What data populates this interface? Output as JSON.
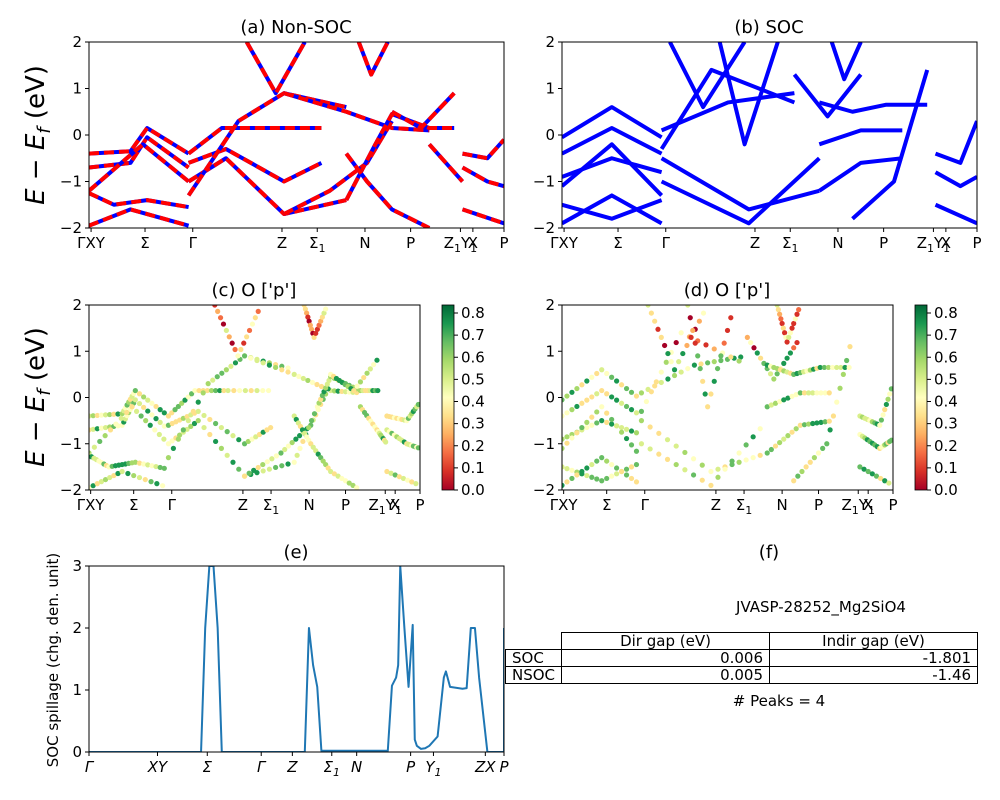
{
  "chart_data": [
    {
      "panel": "a",
      "type": "line",
      "title": "(a) Non-SOC",
      "ylabel": "E − E_f (eV)",
      "ylim": [
        -2,
        2
      ],
      "yticks": [
        "2",
        "1",
        "0",
        "−1",
        "−2"
      ],
      "kpath_labels": [
        "ΓXY",
        "Σ",
        "Γ",
        "Z",
        "Σ1",
        "N",
        "P",
        "Z1Y1",
        "X",
        "P"
      ],
      "line_color": "#0000ff",
      "overlay_color": "#ff0000",
      "series": [
        {
          "x": [
            0,
            0.1,
            0.14,
            0.24
          ],
          "y": [
            -0.4,
            -0.35,
            0.15,
            -0.4
          ]
        },
        {
          "x": [
            0,
            0.1,
            0.14,
            0.24
          ],
          "y": [
            -0.7,
            -0.6,
            -0.05,
            -0.7
          ]
        },
        {
          "x": [
            0,
            0.13,
            0.24
          ],
          "y": [
            -1.2,
            -0.2,
            -1.0
          ]
        },
        {
          "x": [
            0,
            0.06,
            0.14,
            0.24
          ],
          "y": [
            -1.25,
            -1.5,
            -1.4,
            -1.55
          ]
        },
        {
          "x": [
            0,
            0.1,
            0.24
          ],
          "y": [
            -1.95,
            -1.6,
            -1.95
          ]
        },
        {
          "x": [
            0.24,
            0.32,
            0.42,
            0.56
          ],
          "y": [
            -0.4,
            0.15,
            0.15,
            0.15
          ]
        },
        {
          "x": [
            0.24,
            0.33,
            0.47,
            0.56
          ],
          "y": [
            -0.6,
            -0.3,
            -1.0,
            -0.6
          ]
        },
        {
          "x": [
            0.24,
            0.33,
            0.47,
            0.62
          ],
          "y": [
            -1.0,
            -0.5,
            -1.7,
            -1.4
          ]
        },
        {
          "x": [
            0.24,
            0.36,
            0.47,
            0.62
          ],
          "y": [
            -1.3,
            0.3,
            0.9,
            0.6
          ]
        },
        {
          "x": [
            0.38,
            0.45,
            0.52
          ],
          "y": [
            2.0,
            0.9,
            2.0
          ]
        },
        {
          "x": [
            0.47,
            0.62,
            0.73,
            0.82
          ],
          "y": [
            0.9,
            0.5,
            0.15,
            0.1
          ]
        },
        {
          "x": [
            0.47,
            0.58,
            0.67,
            0.73
          ],
          "y": [
            -1.7,
            -1.2,
            -0.6,
            0.3
          ]
        },
        {
          "x": [
            0.62,
            0.69,
            0.73,
            0.82,
            0.88
          ],
          "y": [
            -1.4,
            -0.2,
            0.45,
            0.15,
            0.15
          ]
        },
        {
          "x": [
            0.62,
            0.67,
            0.73,
            0.82
          ],
          "y": [
            -0.4,
            -1.0,
            -1.6,
            -2.0
          ]
        },
        {
          "x": [
            0.65,
            0.68,
            0.72
          ],
          "y": [
            2.0,
            1.3,
            2.0
          ]
        },
        {
          "x": [
            0.73,
            0.8,
            0.88
          ],
          "y": [
            0.5,
            0.15,
            0.9
          ]
        },
        {
          "x": [
            0.82,
            0.87,
            0.9
          ],
          "y": [
            -0.2,
            -0.7,
            -1.0
          ]
        },
        {
          "x": [
            0.9,
            0.96,
            1.0
          ],
          "y": [
            -0.4,
            -0.5,
            -0.1
          ]
        },
        {
          "x": [
            0.9,
            0.96,
            1.0
          ],
          "y": [
            -0.7,
            -1.0,
            -1.1
          ]
        },
        {
          "x": [
            0.9,
            1.0
          ],
          "y": [
            -1.6,
            -1.9
          ]
        }
      ]
    },
    {
      "panel": "b",
      "type": "line",
      "title": "(b) SOC",
      "ylim": [
        -2,
        2
      ],
      "yticks": [
        "2",
        "1",
        "0",
        "−1",
        "−2"
      ],
      "kpath_labels": [
        "ΓXY",
        "Σ",
        "Γ",
        "Z",
        "Σ1",
        "N",
        "P",
        "Z1Y1",
        "X",
        "P"
      ],
      "line_color": "#0000ff",
      "series": [
        {
          "x": [
            0,
            0.12,
            0.24
          ],
          "y": [
            -0.05,
            0.6,
            -0.05
          ]
        },
        {
          "x": [
            0,
            0.12,
            0.24
          ],
          "y": [
            -0.4,
            0.15,
            -0.4
          ]
        },
        {
          "x": [
            0,
            0.12,
            0.24
          ],
          "y": [
            -0.9,
            -0.5,
            -0.8
          ]
        },
        {
          "x": [
            0,
            0.12,
            0.24
          ],
          "y": [
            -1.1,
            -0.2,
            -1.3
          ]
        },
        {
          "x": [
            0,
            0.12,
            0.24
          ],
          "y": [
            -1.5,
            -1.8,
            -1.4
          ]
        },
        {
          "x": [
            0,
            0.12,
            0.24
          ],
          "y": [
            -1.9,
            -1.3,
            -1.9
          ]
        },
        {
          "x": [
            0.24,
            0.4,
            0.56
          ],
          "y": [
            0.1,
            0.7,
            0.9
          ]
        },
        {
          "x": [
            0.24,
            0.36,
            0.56
          ],
          "y": [
            -0.3,
            1.4,
            0.7
          ]
        },
        {
          "x": [
            0.24,
            0.45,
            0.62
          ],
          "y": [
            -0.5,
            -1.6,
            -1.2
          ]
        },
        {
          "x": [
            0.24,
            0.45,
            0.62
          ],
          "y": [
            -1.0,
            -1.9,
            -0.5
          ]
        },
        {
          "x": [
            0.26,
            0.34,
            0.44
          ],
          "y": [
            2.0,
            0.6,
            2.0
          ]
        },
        {
          "x": [
            0.38,
            0.44,
            0.52
          ],
          "y": [
            2.0,
            -0.2,
            2.0
          ]
        },
        {
          "x": [
            0.56,
            0.64,
            0.72
          ],
          "y": [
            1.3,
            0.4,
            1.3
          ]
        },
        {
          "x": [
            0.62,
            0.7,
            0.78,
            0.88
          ],
          "y": [
            0.7,
            0.5,
            0.65,
            0.65
          ]
        },
        {
          "x": [
            0.62,
            0.72,
            0.82
          ],
          "y": [
            -0.2,
            0.1,
            0.1
          ]
        },
        {
          "x": [
            0.62,
            0.72,
            0.82
          ],
          "y": [
            -1.2,
            -0.6,
            -0.5
          ]
        },
        {
          "x": [
            0.65,
            0.68,
            0.72
          ],
          "y": [
            2.0,
            1.2,
            2.0
          ]
        },
        {
          "x": [
            0.7,
            0.8,
            0.88
          ],
          "y": [
            -1.8,
            -1.0,
            1.4
          ]
        },
        {
          "x": [
            0.9,
            0.96,
            1.0
          ],
          "y": [
            -0.4,
            -0.6,
            0.3
          ]
        },
        {
          "x": [
            0.9,
            0.96,
            1.0
          ],
          "y": [
            -0.8,
            -1.1,
            -0.9
          ]
        },
        {
          "x": [
            0.9,
            1.0
          ],
          "y": [
            -1.5,
            -1.9
          ]
        }
      ]
    },
    {
      "panel": "c",
      "type": "scatter",
      "title": "(c)  O ['p']",
      "ylabel": "E − E_f (eV)",
      "ylim": [
        -2,
        2
      ],
      "yticks": [
        "2",
        "1",
        "0",
        "−1",
        "−2"
      ],
      "kpath_labels": [
        "ΓXY",
        "Σ",
        "Γ",
        "Z",
        "Σ1",
        "N",
        "P",
        "Z1Y1",
        "X",
        "P"
      ],
      "colorbar": {
        "min": 0.0,
        "max": 0.8,
        "ticks": [
          "0.8",
          "0.7",
          "0.6",
          "0.5",
          "0.4",
          "0.3",
          "0.2",
          "0.1",
          "0.0"
        ]
      }
    },
    {
      "panel": "d",
      "type": "scatter",
      "title": "(d) O ['p']",
      "ylim": [
        -2,
        2
      ],
      "yticks": [
        "2",
        "1",
        "0",
        "−1",
        "−2"
      ],
      "kpath_labels": [
        "ΓXY",
        "Σ",
        "Γ",
        "Z",
        "Σ1",
        "N",
        "P",
        "Z1Y1",
        "X",
        "P"
      ],
      "colorbar": {
        "min": 0.0,
        "max": 0.8,
        "ticks": [
          "0.8",
          "0.7",
          "0.6",
          "0.5",
          "0.4",
          "0.3",
          "0.2",
          "0.1",
          "0.0"
        ]
      }
    },
    {
      "panel": "e",
      "type": "line",
      "title": "(e)",
      "ylabel": "SOC spillage (chg. den. unit)",
      "ylim": [
        0,
        3
      ],
      "yticks": [
        "3",
        "2",
        "1",
        "0"
      ],
      "kpath_labels": [
        "Γ",
        "XY",
        "Σ",
        "Γ",
        "Z",
        "Σ1",
        "N",
        "P",
        "Y1",
        "ZX",
        "P"
      ],
      "line_color": "#1f77b4",
      "x": [
        0,
        0.27,
        0.28,
        0.29,
        0.3,
        0.31,
        0.32,
        0.33,
        0.52,
        0.53,
        0.54,
        0.55,
        0.56,
        0.57,
        0.72,
        0.73,
        0.74,
        0.745,
        0.75,
        0.76,
        0.77,
        0.78,
        0.785,
        0.79,
        0.8,
        0.81,
        0.82,
        0.84,
        0.855,
        0.86,
        0.87,
        0.9,
        0.91,
        0.92,
        0.93,
        0.94,
        0.96,
        1.0,
        1.0
      ],
      "y": [
        0,
        0,
        2.0,
        3.0,
        3.0,
        2.0,
        0,
        0,
        0,
        2.0,
        1.4,
        1.05,
        0.02,
        0.02,
        0.02,
        1.07,
        1.2,
        1.4,
        3.0,
        2.0,
        1.05,
        2.05,
        0.2,
        0.1,
        0.05,
        0.06,
        0.1,
        0.25,
        1.2,
        1.3,
        1.05,
        1.02,
        1.03,
        2.0,
        2.0,
        1.2,
        0,
        0,
        2.0
      ]
    }
  ],
  "info_panel": {
    "title": "(f)",
    "material": "JVASP-28252_Mg2SiO4",
    "table": {
      "columns": [
        "",
        "Dir gap (eV)",
        "Indir gap (eV)"
      ],
      "rows": [
        {
          "label": "SOC",
          "dir": "0.006",
          "indir": "-1.801"
        },
        {
          "label": "NSOC",
          "dir": "0.005",
          "indir": "-1.46"
        }
      ]
    },
    "peaks_text": "# Peaks = 4"
  }
}
